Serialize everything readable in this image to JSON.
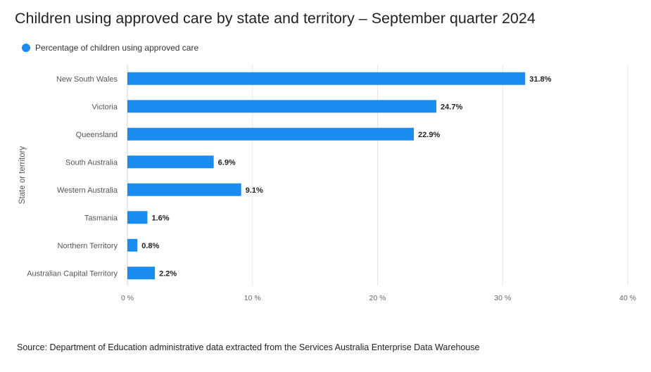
{
  "chart_data": {
    "type": "bar",
    "orientation": "horizontal",
    "title": "Children using approved care by state and territory – September quarter 2024",
    "xlabel": "",
    "ylabel": "State or territory",
    "xlim": [
      0,
      40
    ],
    "xticks": [
      0,
      10,
      20,
      30,
      40
    ],
    "xtick_labels": [
      "0 %",
      "10 %",
      "20 %",
      "30 %",
      "40 %"
    ],
    "grid": true,
    "legend_position": "top-left",
    "categories": [
      "New South Wales",
      "Victoria",
      "Queensland",
      "South Australia",
      "Western Australia",
      "Tasmania",
      "Northern Territory",
      "Australian Capital Territory"
    ],
    "series": [
      {
        "name": "Percentage of children using approved care",
        "color": "#1a8cf0",
        "values": [
          31.8,
          24.7,
          22.9,
          6.9,
          9.1,
          1.6,
          0.8,
          2.2
        ],
        "labels": [
          "31.8%",
          "24.7%",
          "22.9%",
          "6.9%",
          "9.1%",
          "1.6%",
          "0.8%",
          "2.2%"
        ]
      }
    ]
  },
  "footer": {
    "source": "Source: Department of Education administrative data extracted from the Services Australia Enterprise Data Warehouse"
  }
}
